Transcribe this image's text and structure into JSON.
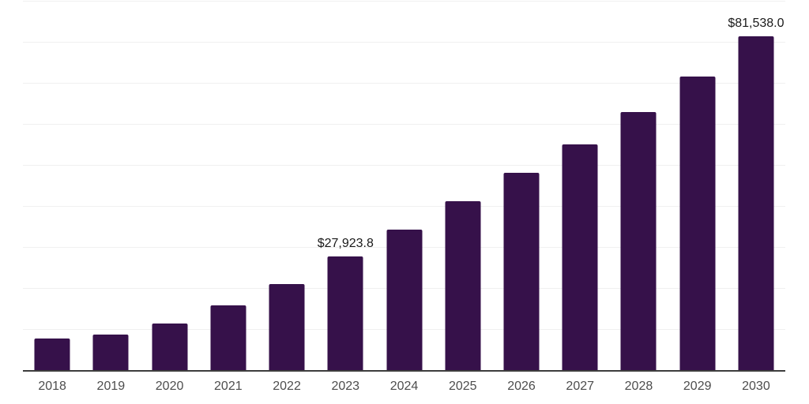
{
  "chart_data": {
    "type": "bar",
    "title": "",
    "xlabel": "",
    "ylabel": "",
    "categories": [
      "2018",
      "2019",
      "2020",
      "2021",
      "2022",
      "2023",
      "2024",
      "2025",
      "2026",
      "2027",
      "2028",
      "2029",
      "2030"
    ],
    "values": [
      7800,
      8800,
      11500,
      15950,
      21200,
      27923.8,
      34400,
      41350,
      48250,
      55200,
      63000,
      71750,
      81538.0
    ],
    "ylim": [
      0,
      90000
    ],
    "gridline_step": 10000,
    "grid": true,
    "legend": false,
    "data_labels": [
      {
        "index": 5,
        "text": "$27,923.8"
      },
      {
        "index": 12,
        "text": "$81,538.0"
      }
    ]
  },
  "colors": {
    "bar": "#36114a",
    "gridline": "#f0f0f0",
    "axis_line": "#3d3d3d",
    "tick_label": "#4d4d4d",
    "value_label": "#1a1a1a",
    "background": "#ffffff"
  }
}
